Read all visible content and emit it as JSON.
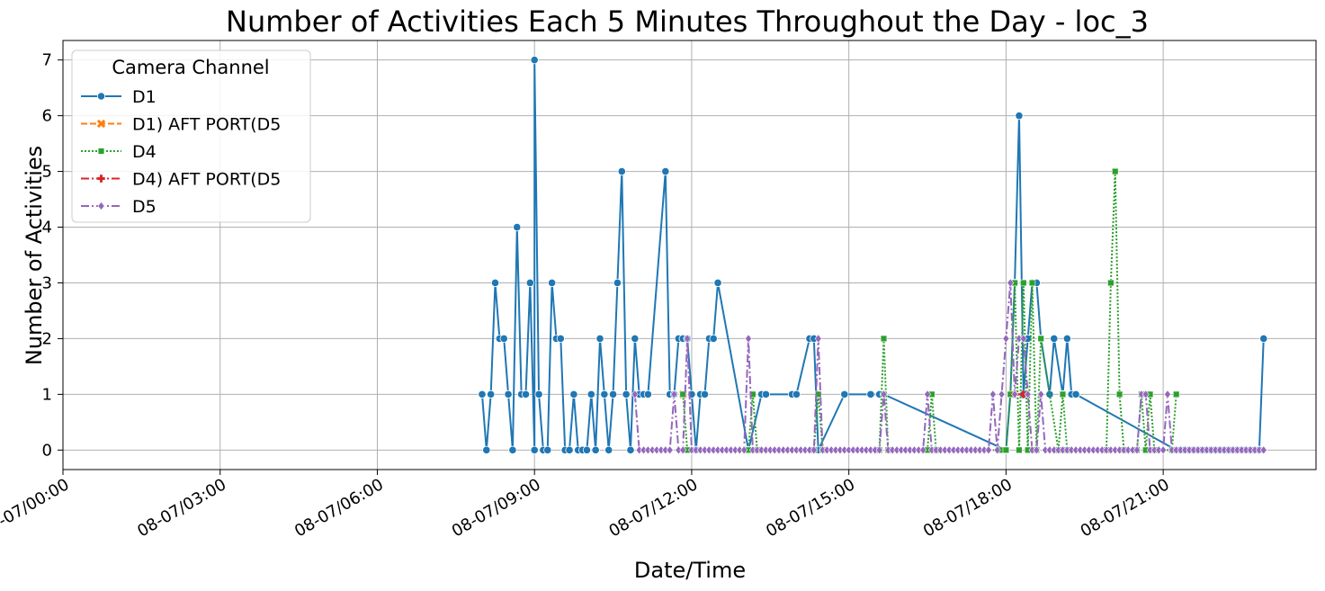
{
  "chart_data": {
    "type": "line",
    "title": "Number of Activities Each 5 Minutes Throughout the Day - loc_3",
    "xlabel": "Date/Time",
    "ylabel": "Number of Activities",
    "x_ticks": [
      "08-07/00:00",
      "08-07/03:00",
      "08-07/06:00",
      "08-07/09:00",
      "08-07/12:00",
      "08-07/15:00",
      "08-07/18:00",
      "08-07/21:00"
    ],
    "y_ticks": [
      "0",
      "1",
      "2",
      "3",
      "4",
      "5",
      "6",
      "7"
    ],
    "xlim": [
      "08-07/00:00",
      "08-07/23:55"
    ],
    "ylim": [
      -0.35,
      7.35
    ],
    "grid": true,
    "legend": {
      "title": "Camera Channel",
      "placement": "top-left"
    },
    "series": [
      {
        "name": "D1",
        "color": "#1f77b4",
        "marker": "circle",
        "dash": "solid",
        "points": [
          [
            "08:00",
            1
          ],
          [
            "08:05",
            0
          ],
          [
            "08:10",
            1
          ],
          [
            "08:15",
            3
          ],
          [
            "08:20",
            2
          ],
          [
            "08:25",
            2
          ],
          [
            "08:30",
            1
          ],
          [
            "08:35",
            0
          ],
          [
            "08:40",
            4
          ],
          [
            "08:45",
            1
          ],
          [
            "08:50",
            1
          ],
          [
            "08:55",
            3
          ],
          [
            "09:00",
            0
          ],
          [
            "09:00",
            7
          ],
          [
            "09:05",
            1
          ],
          [
            "09:10",
            0
          ],
          [
            "09:15",
            0
          ],
          [
            "09:20",
            3
          ],
          [
            "09:25",
            2
          ],
          [
            "09:30",
            2
          ],
          [
            "09:35",
            0
          ],
          [
            "09:40",
            0
          ],
          [
            "09:45",
            1
          ],
          [
            "09:50",
            0
          ],
          [
            "09:55",
            0
          ],
          [
            "10:00",
            0
          ],
          [
            "10:05",
            1
          ],
          [
            "10:10",
            0
          ],
          [
            "10:15",
            2
          ],
          [
            "10:20",
            1
          ],
          [
            "10:25",
            0
          ],
          [
            "10:30",
            1
          ],
          [
            "10:35",
            3
          ],
          [
            "10:40",
            5
          ],
          [
            "10:45",
            1
          ],
          [
            "10:50",
            0
          ],
          [
            "10:55",
            2
          ],
          [
            "11:00",
            1
          ],
          [
            "11:05",
            1
          ],
          [
            "11:10",
            1
          ],
          [
            "11:30",
            5
          ],
          [
            "11:35",
            1
          ],
          [
            "11:40",
            1
          ],
          [
            "11:45",
            2
          ],
          [
            "11:50",
            2
          ],
          [
            "11:55",
            2
          ],
          [
            "12:00",
            1
          ],
          [
            "12:05",
            0
          ],
          [
            "12:10",
            1
          ],
          [
            "12:15",
            1
          ],
          [
            "12:20",
            2
          ],
          [
            "12:25",
            2
          ],
          [
            "12:30",
            3
          ],
          [
            "13:05",
            0
          ],
          [
            "13:20",
            1
          ],
          [
            "13:25",
            1
          ],
          [
            "13:55",
            1
          ],
          [
            "14:00",
            1
          ],
          [
            "14:15",
            2
          ],
          [
            "14:20",
            2
          ],
          [
            "14:25",
            0
          ],
          [
            "14:55",
            1
          ],
          [
            "15:25",
            1
          ],
          [
            "15:35",
            1
          ],
          [
            "15:40",
            1
          ],
          [
            "18:00",
            0
          ],
          [
            "18:05",
            1
          ],
          [
            "18:10",
            3
          ],
          [
            "18:15",
            6
          ],
          [
            "18:20",
            1
          ],
          [
            "18:25",
            2
          ],
          [
            "18:30",
            3
          ],
          [
            "18:35",
            3
          ],
          [
            "18:40",
            2
          ],
          [
            "18:50",
            1
          ],
          [
            "18:55",
            2
          ],
          [
            "19:05",
            1
          ],
          [
            "19:10",
            2
          ],
          [
            "19:15",
            1
          ],
          [
            "19:20",
            1
          ],
          [
            "21:15",
            0
          ],
          [
            "21:20",
            0
          ],
          [
            "21:25",
            0
          ],
          [
            "21:30",
            0
          ],
          [
            "21:35",
            0
          ],
          [
            "21:40",
            0
          ],
          [
            "21:45",
            0
          ],
          [
            "21:50",
            0
          ],
          [
            "21:55",
            0
          ],
          [
            "22:00",
            0
          ],
          [
            "22:05",
            0
          ],
          [
            "22:10",
            0
          ],
          [
            "22:15",
            0
          ],
          [
            "22:20",
            0
          ],
          [
            "22:25",
            0
          ],
          [
            "22:30",
            0
          ],
          [
            "22:35",
            0
          ],
          [
            "22:40",
            0
          ],
          [
            "22:45",
            0
          ],
          [
            "22:50",
            0
          ],
          [
            "22:55",
            2
          ]
        ]
      },
      {
        "name": "D1)  AFT PORT(D5",
        "color": "#ff7f0e",
        "marker": "x",
        "dash": "dashed",
        "points": [
          [
            "11:50",
            1
          ]
        ]
      },
      {
        "name": "D4",
        "color": "#2ca02c",
        "marker": "square",
        "dash": "dotted",
        "points": [
          [
            "11:50",
            1
          ],
          [
            "11:55",
            0
          ],
          [
            "13:05",
            0
          ],
          [
            "13:10",
            1
          ],
          [
            "13:15",
            0
          ],
          [
            "14:20",
            0
          ],
          [
            "14:25",
            1
          ],
          [
            "14:30",
            0
          ],
          [
            "15:35",
            0
          ],
          [
            "15:40",
            2
          ],
          [
            "15:45",
            0
          ],
          [
            "16:30",
            0
          ],
          [
            "16:35",
            1
          ],
          [
            "16:40",
            0
          ],
          [
            "17:55",
            0
          ],
          [
            "18:00",
            0
          ],
          [
            "18:05",
            1
          ],
          [
            "18:10",
            3
          ],
          [
            "18:15",
            0
          ],
          [
            "18:20",
            3
          ],
          [
            "18:25",
            0
          ],
          [
            "18:30",
            3
          ],
          [
            "18:35",
            0
          ],
          [
            "18:40",
            2
          ],
          [
            "19:00",
            0
          ],
          [
            "19:05",
            1
          ],
          [
            "19:10",
            0
          ],
          [
            "19:55",
            0
          ],
          [
            "20:00",
            3
          ],
          [
            "20:05",
            5
          ],
          [
            "20:10",
            1
          ],
          [
            "20:15",
            0
          ],
          [
            "20:30",
            0
          ],
          [
            "20:35",
            1
          ],
          [
            "20:40",
            0
          ],
          [
            "20:45",
            1
          ],
          [
            "20:50",
            0
          ],
          [
            "21:10",
            0
          ],
          [
            "21:15",
            1
          ]
        ]
      },
      {
        "name": "D4)  AFT PORT(D5",
        "color": "#d62728",
        "marker": "plus",
        "dash": "dashdot",
        "points": [
          [
            "18:10",
            1
          ],
          [
            "18:20",
            1
          ]
        ]
      },
      {
        "name": "D5",
        "color": "#9467bd",
        "marker": "diamond",
        "dash": "dashdot",
        "points": [
          [
            "10:55",
            1
          ],
          [
            "11:00",
            0
          ],
          [
            "11:05",
            0
          ],
          [
            "11:10",
            0
          ],
          [
            "11:15",
            0
          ],
          [
            "11:20",
            0
          ],
          [
            "11:25",
            0
          ],
          [
            "11:30",
            0
          ],
          [
            "11:35",
            0
          ],
          [
            "11:40",
            1
          ],
          [
            "11:45",
            0
          ],
          [
            "11:50",
            0
          ],
          [
            "11:55",
            2
          ],
          [
            "12:00",
            0
          ],
          [
            "12:05",
            0
          ],
          [
            "12:10",
            0
          ],
          [
            "12:15",
            0
          ],
          [
            "12:20",
            0
          ],
          [
            "12:25",
            0
          ],
          [
            "12:30",
            0
          ],
          [
            "12:35",
            0
          ],
          [
            "12:40",
            0
          ],
          [
            "12:45",
            0
          ],
          [
            "12:50",
            0
          ],
          [
            "12:55",
            0
          ],
          [
            "13:00",
            0
          ],
          [
            "13:05",
            2
          ],
          [
            "13:10",
            0
          ],
          [
            "13:15",
            0
          ],
          [
            "13:20",
            0
          ],
          [
            "13:25",
            0
          ],
          [
            "13:30",
            0
          ],
          [
            "13:35",
            0
          ],
          [
            "13:40",
            0
          ],
          [
            "13:45",
            0
          ],
          [
            "13:50",
            0
          ],
          [
            "13:55",
            0
          ],
          [
            "14:00",
            0
          ],
          [
            "14:05",
            0
          ],
          [
            "14:10",
            0
          ],
          [
            "14:15",
            0
          ],
          [
            "14:20",
            0
          ],
          [
            "14:25",
            2
          ],
          [
            "14:30",
            0
          ],
          [
            "14:35",
            0
          ],
          [
            "14:40",
            0
          ],
          [
            "14:45",
            0
          ],
          [
            "14:50",
            0
          ],
          [
            "14:55",
            0
          ],
          [
            "15:00",
            0
          ],
          [
            "15:05",
            0
          ],
          [
            "15:10",
            0
          ],
          [
            "15:15",
            0
          ],
          [
            "15:20",
            0
          ],
          [
            "15:25",
            0
          ],
          [
            "15:30",
            0
          ],
          [
            "15:35",
            0
          ],
          [
            "15:40",
            1
          ],
          [
            "15:45",
            0
          ],
          [
            "15:50",
            0
          ],
          [
            "15:55",
            0
          ],
          [
            "16:00",
            0
          ],
          [
            "16:05",
            0
          ],
          [
            "16:10",
            0
          ],
          [
            "16:15",
            0
          ],
          [
            "16:20",
            0
          ],
          [
            "16:25",
            0
          ],
          [
            "16:30",
            1
          ],
          [
            "16:35",
            0
          ],
          [
            "16:40",
            0
          ],
          [
            "16:45",
            0
          ],
          [
            "16:50",
            0
          ],
          [
            "16:55",
            0
          ],
          [
            "17:00",
            0
          ],
          [
            "17:05",
            0
          ],
          [
            "17:10",
            0
          ],
          [
            "17:15",
            0
          ],
          [
            "17:20",
            0
          ],
          [
            "17:25",
            0
          ],
          [
            "17:30",
            0
          ],
          [
            "17:35",
            0
          ],
          [
            "17:40",
            0
          ],
          [
            "17:45",
            1
          ],
          [
            "17:50",
            0
          ],
          [
            "17:55",
            1
          ],
          [
            "18:00",
            2
          ],
          [
            "18:05",
            3
          ],
          [
            "18:10",
            1
          ],
          [
            "18:15",
            2
          ],
          [
            "18:20",
            2
          ],
          [
            "18:25",
            1
          ],
          [
            "18:30",
            0
          ],
          [
            "18:35",
            0
          ],
          [
            "18:40",
            1
          ],
          [
            "18:45",
            0
          ],
          [
            "18:50",
            0
          ],
          [
            "18:55",
            0
          ],
          [
            "19:00",
            0
          ],
          [
            "19:05",
            0
          ],
          [
            "19:10",
            0
          ],
          [
            "19:15",
            0
          ],
          [
            "19:20",
            0
          ],
          [
            "19:25",
            0
          ],
          [
            "19:30",
            0
          ],
          [
            "19:35",
            0
          ],
          [
            "19:40",
            0
          ],
          [
            "19:45",
            0
          ],
          [
            "19:50",
            0
          ],
          [
            "19:55",
            0
          ],
          [
            "20:00",
            0
          ],
          [
            "20:05",
            0
          ],
          [
            "20:10",
            0
          ],
          [
            "20:15",
            0
          ],
          [
            "20:20",
            0
          ],
          [
            "20:25",
            0
          ],
          [
            "20:30",
            0
          ],
          [
            "20:35",
            1
          ],
          [
            "20:40",
            1
          ],
          [
            "20:45",
            0
          ],
          [
            "20:50",
            0
          ],
          [
            "20:55",
            0
          ],
          [
            "21:00",
            0
          ],
          [
            "21:05",
            1
          ],
          [
            "21:10",
            0
          ],
          [
            "21:15",
            0
          ],
          [
            "21:20",
            0
          ],
          [
            "21:25",
            0
          ],
          [
            "21:30",
            0
          ],
          [
            "21:35",
            0
          ],
          [
            "21:40",
            0
          ],
          [
            "21:45",
            0
          ],
          [
            "21:50",
            0
          ],
          [
            "21:55",
            0
          ],
          [
            "22:00",
            0
          ],
          [
            "22:05",
            0
          ],
          [
            "22:10",
            0
          ],
          [
            "22:15",
            0
          ],
          [
            "22:20",
            0
          ],
          [
            "22:25",
            0
          ],
          [
            "22:30",
            0
          ],
          [
            "22:35",
            0
          ],
          [
            "22:40",
            0
          ],
          [
            "22:45",
            0
          ],
          [
            "22:50",
            0
          ],
          [
            "22:55",
            0
          ]
        ]
      }
    ]
  }
}
